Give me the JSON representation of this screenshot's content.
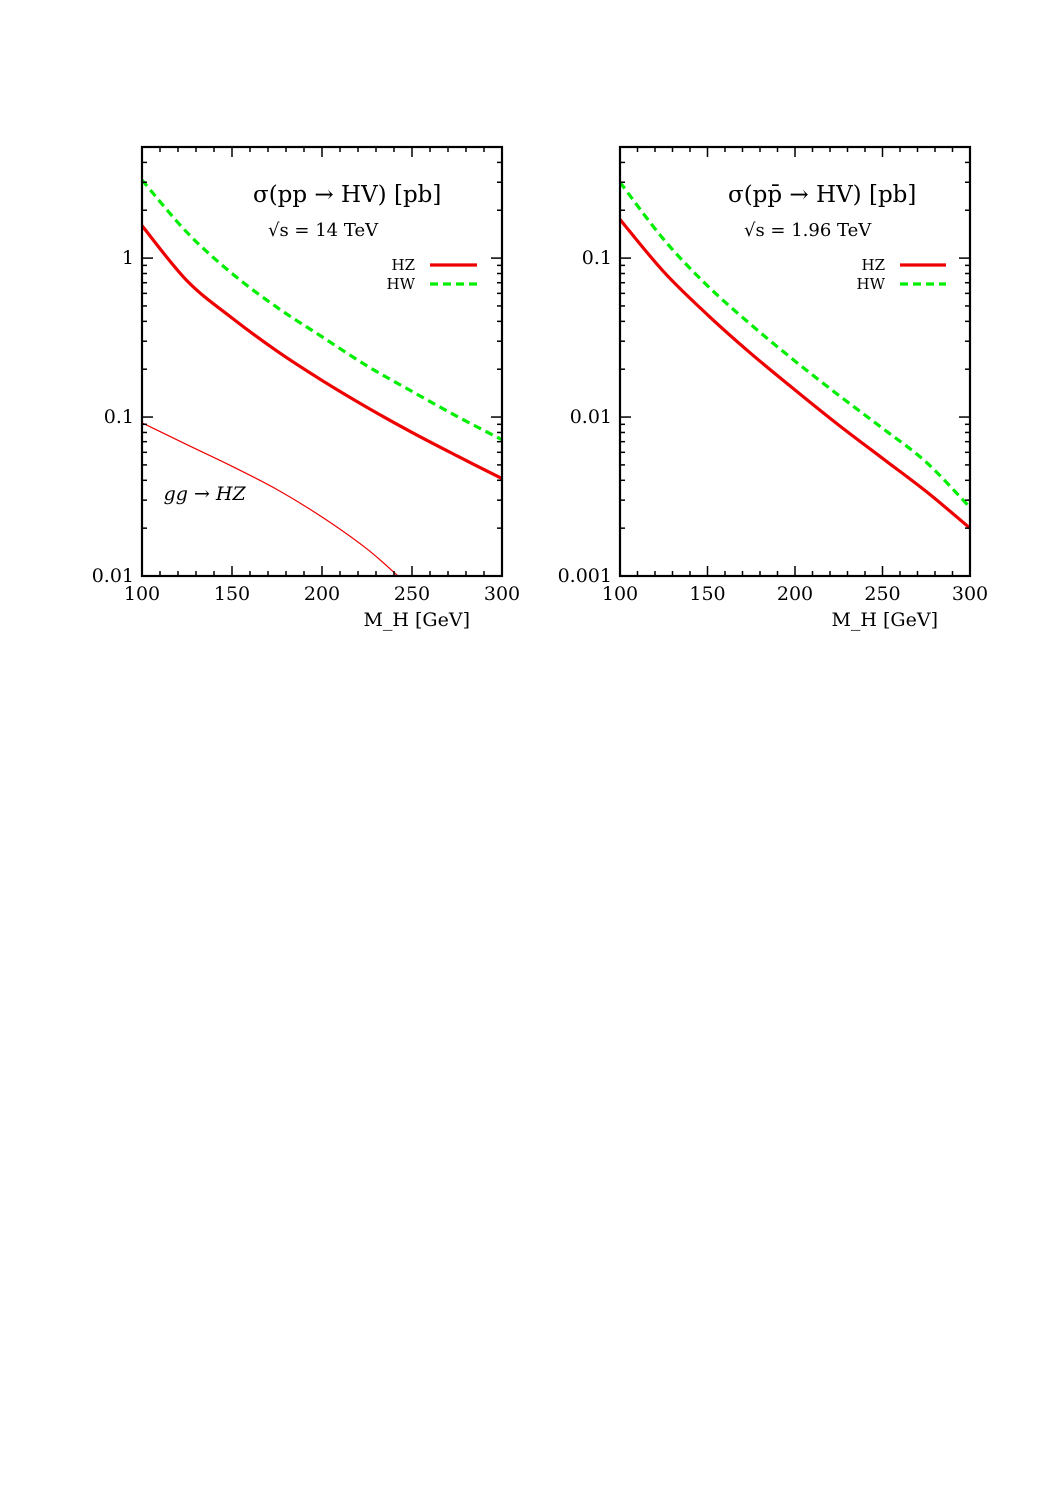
{
  "chart_data": [
    {
      "type": "line",
      "title": "σ(pp → HV) [pb]",
      "subtitle": "√s = 14 TeV",
      "xlabel": "M_H [GeV]",
      "ylabel": "",
      "xlim": [
        100,
        300
      ],
      "ylim": [
        0.01,
        5
      ],
      "yscale": "log",
      "grid": false,
      "legend_position": "top-right",
      "x_ticks": [
        100,
        150,
        200,
        250,
        300
      ],
      "x_tick_labels": [
        "100",
        "150",
        "200",
        "250",
        "300"
      ],
      "y_ticks": [
        0.01,
        0.1,
        1
      ],
      "y_tick_labels": [
        "0.01",
        "0.1",
        "1"
      ],
      "series": [
        {
          "name": "HZ",
          "color": "#ee0000",
          "style": "solid",
          "width": "thick",
          "x": [
            100,
            125,
            150,
            175,
            200,
            225,
            250,
            275,
            300
          ],
          "y": [
            1.6,
            0.72,
            0.42,
            0.26,
            0.17,
            0.115,
            0.08,
            0.057,
            0.041
          ]
        },
        {
          "name": "HW",
          "color": "#00ee00",
          "style": "dashed",
          "width": "thick",
          "x": [
            100,
            125,
            150,
            175,
            200,
            225,
            250,
            275,
            300
          ],
          "y": [
            3.1,
            1.45,
            0.8,
            0.49,
            0.32,
            0.21,
            0.145,
            0.101,
            0.072
          ]
        },
        {
          "name": "",
          "label": "gg → HZ",
          "color": "#ee0000",
          "style": "solid",
          "width": "thin",
          "x": [
            100,
            125,
            150,
            175,
            200,
            225,
            243
          ],
          "y": [
            0.092,
            0.067,
            0.049,
            0.035,
            0.0235,
            0.0148,
            0.0098
          ]
        }
      ],
      "annotations": [
        {
          "text": "gg → HZ",
          "x": 112,
          "y": 0.03
        }
      ]
    },
    {
      "type": "line",
      "title": "σ(pp̄ → HV) [pb]",
      "subtitle": "√s = 1.96 TeV",
      "xlabel": "M_H [GeV]",
      "ylabel": "",
      "xlim": [
        100,
        300
      ],
      "ylim": [
        0.001,
        0.5
      ],
      "yscale": "log",
      "grid": false,
      "legend_position": "top-right",
      "x_ticks": [
        100,
        150,
        200,
        250,
        300
      ],
      "x_tick_labels": [
        "100",
        "150",
        "200",
        "250",
        "300"
      ],
      "y_ticks": [
        0.001,
        0.01,
        0.1
      ],
      "y_tick_labels": [
        "0.001",
        "0.01",
        "0.1"
      ],
      "series": [
        {
          "name": "HZ",
          "color": "#ee0000",
          "style": "solid",
          "width": "thick",
          "x": [
            100,
            125,
            150,
            175,
            200,
            225,
            250,
            275,
            300
          ],
          "y": [
            0.175,
            0.082,
            0.044,
            0.025,
            0.0148,
            0.0089,
            0.0055,
            0.0034,
            0.002
          ]
        },
        {
          "name": "HW",
          "color": "#00ee00",
          "style": "dashed",
          "width": "thick",
          "x": [
            100,
            125,
            150,
            175,
            200,
            225,
            250,
            275,
            300
          ],
          "y": [
            0.3,
            0.131,
            0.067,
            0.038,
            0.0225,
            0.0137,
            0.0085,
            0.0052,
            0.0027
          ]
        }
      ],
      "annotations": []
    }
  ]
}
